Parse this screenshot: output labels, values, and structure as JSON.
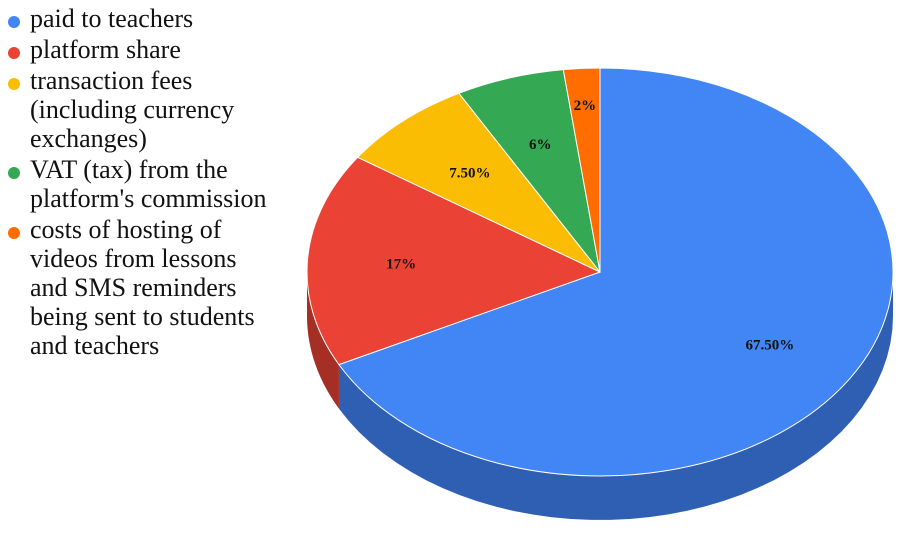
{
  "chart_data": {
    "type": "pie",
    "style": "3d",
    "legend_position": "left",
    "slices": [
      {
        "label": "paid to teachers",
        "value": 67.5,
        "value_label": "67.50%",
        "color": "#4285f4",
        "side_color": "#2f5fb3"
      },
      {
        "label": "platform share",
        "value": 17,
        "value_label": "17%",
        "color": "#ea4335",
        "side_color": "#a52f25"
      },
      {
        "label": "transaction fees (including currency exchanges)",
        "value": 7.5,
        "value_label": "7.50%",
        "color": "#fbbc04",
        "side_color": "#b08403"
      },
      {
        "label": "VAT (tax) from the platform's commission",
        "value": 6,
        "value_label": "6%",
        "color": "#34a853",
        "side_color": "#24763a"
      },
      {
        "label": "costs of hosting of videos from lessons and SMS reminders being sent to students and teachers",
        "value": 2,
        "value_label": "2%",
        "color": "#ff6d01",
        "side_color": "#b34c01"
      }
    ]
  }
}
